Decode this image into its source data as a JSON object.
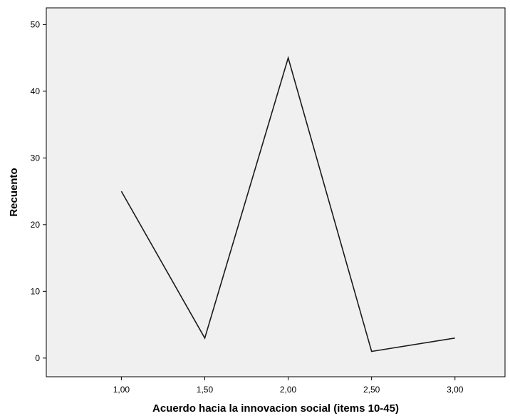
{
  "chart_data": {
    "type": "line",
    "title": "",
    "xlabel": "Acuerdo hacia la innovacion social (items 10-45)",
    "ylabel": "Recuento",
    "x": [
      "1,00",
      "1,50",
      "2,00",
      "2,50",
      "3,00"
    ],
    "x_values": [
      1.0,
      1.5,
      2.0,
      2.5,
      3.0
    ],
    "values": [
      25,
      3,
      45,
      1,
      3
    ],
    "xlim": [
      0.55,
      3.3
    ],
    "ylim": [
      -2.8,
      52.5
    ],
    "yticks": [
      0,
      10,
      20,
      30,
      40,
      50
    ],
    "ytick_labels": [
      "0",
      "10",
      "20",
      "30",
      "40",
      "50"
    ],
    "grid": false,
    "legend": "none",
    "colors": {
      "plot_background": "#f0f0f0",
      "line": "#1a1a1a",
      "axis": "#000000"
    }
  }
}
